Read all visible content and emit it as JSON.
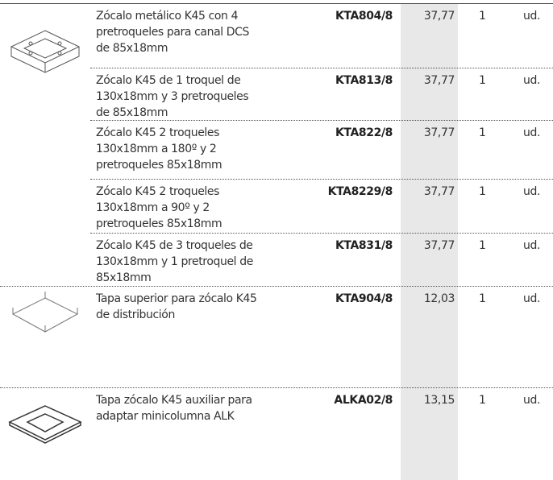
{
  "table": {
    "rows": [
      {
        "description": [
          "Zócalo metálico K45 con 4",
          "pretroqueles para canal DCS",
          "de 85x18mm"
        ],
        "code": "KTA804/8",
        "price": "37,77",
        "qty": "1",
        "unit": "ud."
      },
      {
        "description": [
          "Zócalo K45 de 1 troquel de",
          "130x18mm y 3 pretroqueles",
          "de 85x18mm"
        ],
        "code": "KTA813/8",
        "price": "37,77",
        "qty": "1",
        "unit": "ud."
      },
      {
        "description": [
          "Zócalo K45 2 troqueles",
          "130x18mm a 180º y 2",
          "pretroqueles 85x18mm"
        ],
        "code": "KTA822/8",
        "price": "37,77",
        "qty": "1",
        "unit": "ud."
      },
      {
        "description": [
          "Zócalo K45 2 troqueles",
          "130x18mm a 90º y 2",
          "pretroqueles 85x18mm"
        ],
        "code": "KTA8229/8",
        "price": "37,77",
        "qty": "1",
        "unit": "ud."
      },
      {
        "description": [
          "Zócalo K45 de 3 troqueles de",
          "130x18mm y  1 pretroquel de",
          "85x18mm"
        ],
        "code": "KTA831/8",
        "price": "37,77",
        "qty": "1",
        "unit": "ud."
      },
      {
        "description": [
          "Tapa superior para zócalo K45",
          "de distribución"
        ],
        "code": "KTA904/8",
        "price": "12,03",
        "qty": "1",
        "unit": "ud."
      },
      {
        "description": [
          "Tapa zócalo K45 auxiliar para",
          "adaptar minicolumna ALK"
        ],
        "code": "ALKA02/8",
        "price": "13,15",
        "qty": "1",
        "unit": "ud."
      }
    ]
  }
}
